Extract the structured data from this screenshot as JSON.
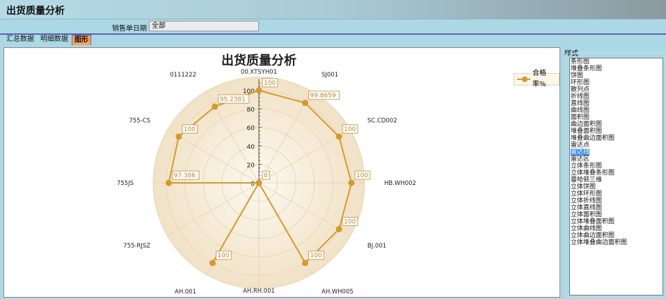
{
  "header": {
    "title": "出货质量分析"
  },
  "filter": {
    "label": "销售单日期",
    "value": "全部"
  },
  "tabs": [
    {
      "label": "汇总数据"
    },
    {
      "label": "明细数据"
    },
    {
      "label": "图形",
      "active": true
    }
  ],
  "chart_data": {
    "type": "radar",
    "title": "出货质量分析",
    "categories": [
      "00.XTSYH01",
      "SJ001",
      "SC.CD002",
      "HB.WH002",
      "BJ.001",
      "AH.WH005",
      "AH.RH.001",
      "AH.001",
      "755-RJSZ",
      "755JS",
      "755-CS",
      "0111222"
    ],
    "series": [
      {
        "name": "合格率%",
        "values": [
          100,
          99.8659,
          100,
          100,
          100,
          100,
          0,
          100,
          0,
          97.386,
          100,
          95.2381
        ],
        "color": "#d69a2a"
      }
    ],
    "data_labels": [
      "100",
      "99.8659",
      "100",
      "100",
      "100",
      "100",
      "0",
      "100",
      "",
      "97.386",
      "100",
      "95.2381"
    ],
    "radial_ticks": [
      0,
      20,
      40,
      60,
      80,
      100
    ],
    "rlim": [
      0,
      112
    ],
    "legend": "top-right",
    "grid": true
  },
  "style_panel": {
    "label": "样式",
    "selected": "雷达线",
    "items": [
      "条形图",
      "堆叠条形图",
      "饼图",
      "环形图",
      "散列点",
      "折线图",
      "直线图",
      "曲线图",
      "面积图",
      "曲边面积图",
      "堆叠面积图",
      "堆叠曲边面积图",
      "雷达点",
      "雷达线",
      "雷达区",
      "立体条形图",
      "立体堆叠条形图",
      "曼哈顿三维",
      "立体饼图",
      "立体环形图",
      "立体折线图",
      "立体直线图",
      "立体面积图",
      "立体堆叠面积图",
      "立体曲线图",
      "立体曲边面积图",
      "立体堆叠曲边面积图"
    ]
  }
}
